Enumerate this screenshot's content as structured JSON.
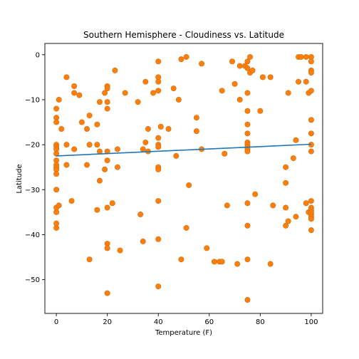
{
  "chart_data": {
    "type": "scatter",
    "title": "Southern Hemisphere - Cloudiness vs. Latitude",
    "xlabel": "Temperature (F)",
    "ylabel": "Latitude",
    "xlim": [
      -4.5,
      104.5
    ],
    "ylim": [
      -57.5,
      2.5
    ],
    "xticks": [
      0,
      20,
      40,
      60,
      80,
      100
    ],
    "yticks": [
      0,
      -10,
      -20,
      -30,
      -40,
      -50
    ],
    "grid": false,
    "colors": {
      "points": "#ff7f0e",
      "points_edge": "#d9720c",
      "regression": "#1f77b4"
    },
    "regression": {
      "x": [
        0,
        100
      ],
      "y": [
        -22.5,
        -19.9
      ]
    },
    "points": [
      [
        0,
        -12
      ],
      [
        0,
        -14
      ],
      [
        0,
        -15
      ],
      [
        0,
        -20
      ],
      [
        0,
        -20.5
      ],
      [
        0,
        -21
      ],
      [
        0,
        -22
      ],
      [
        0,
        -23.5
      ],
      [
        0,
        -24.5
      ],
      [
        0,
        -25
      ],
      [
        0,
        -25.5
      ],
      [
        0,
        -26.5
      ],
      [
        0,
        -30
      ],
      [
        0,
        -34
      ],
      [
        0,
        -35
      ],
      [
        0,
        -37.5
      ],
      [
        0,
        -38.5
      ],
      [
        1,
        -10
      ],
      [
        1,
        -33.5
      ],
      [
        2,
        -16.5
      ],
      [
        4,
        -5
      ],
      [
        4,
        -20
      ],
      [
        4,
        -24.5
      ],
      [
        6,
        -32.5
      ],
      [
        7,
        -7
      ],
      [
        7,
        -8.5
      ],
      [
        7,
        -21
      ],
      [
        9,
        -9
      ],
      [
        10,
        -15
      ],
      [
        12,
        -16.5
      ],
      [
        12,
        -24.5
      ],
      [
        13,
        -13.5
      ],
      [
        13,
        -20
      ],
      [
        13,
        -45.5
      ],
      [
        16,
        -15.5
      ],
      [
        16,
        -20
      ],
      [
        16,
        -34.5
      ],
      [
        17,
        -10.5
      ],
      [
        17,
        -21.5
      ],
      [
        17,
        -28
      ],
      [
        19,
        -8.5
      ],
      [
        19,
        -25.5
      ],
      [
        20,
        -7
      ],
      [
        20,
        -7.5
      ],
      [
        20,
        -10.5
      ],
      [
        20,
        -12
      ],
      [
        20,
        -21.5
      ],
      [
        20,
        -23.5
      ],
      [
        20,
        -34
      ],
      [
        20,
        -42
      ],
      [
        20,
        -43
      ],
      [
        20,
        -53
      ],
      [
        22,
        -33
      ],
      [
        23,
        -3.5
      ],
      [
        24,
        -21
      ],
      [
        24,
        -25
      ],
      [
        25,
        -43.5
      ],
      [
        27,
        -8.5
      ],
      [
        32,
        -10.5
      ],
      [
        33,
        -35.5
      ],
      [
        34,
        -21
      ],
      [
        34,
        -41.5
      ],
      [
        35,
        -6
      ],
      [
        35,
        -19.5
      ],
      [
        36,
        -16.5
      ],
      [
        36,
        -21.5
      ],
      [
        38,
        -8.5
      ],
      [
        40,
        -1.5
      ],
      [
        40,
        -5
      ],
      [
        40,
        -6
      ],
      [
        40,
        -8
      ],
      [
        40,
        -18.5
      ],
      [
        40,
        -20
      ],
      [
        40,
        -20.5
      ],
      [
        40,
        -25
      ],
      [
        40,
        -25.5
      ],
      [
        40,
        -32.5
      ],
      [
        40,
        -41
      ],
      [
        40,
        -51.5
      ],
      [
        41,
        -16
      ],
      [
        44,
        -16.5
      ],
      [
        46,
        -7.5
      ],
      [
        47,
        -22.5
      ],
      [
        48,
        -10
      ],
      [
        49,
        -1
      ],
      [
        49,
        -45.5
      ],
      [
        51,
        -0.5
      ],
      [
        51,
        -38.5
      ],
      [
        52,
        -29
      ],
      [
        55,
        -14
      ],
      [
        55,
        -17
      ],
      [
        57,
        -2
      ],
      [
        57,
        -21
      ],
      [
        59,
        -43
      ],
      [
        62,
        -46
      ],
      [
        64,
        -46
      ],
      [
        65,
        -8
      ],
      [
        65,
        -46
      ],
      [
        66,
        -22
      ],
      [
        67,
        -33.5
      ],
      [
        69,
        -1.5
      ],
      [
        70,
        -6.5
      ],
      [
        71,
        -46.5
      ],
      [
        72,
        -10
      ],
      [
        72,
        -2.5
      ],
      [
        74,
        -2.5
      ],
      [
        75,
        -1.5
      ],
      [
        75,
        -3
      ],
      [
        75,
        -8.5
      ],
      [
        75,
        -12.5
      ],
      [
        75,
        -15.5
      ],
      [
        75,
        -17.5
      ],
      [
        75,
        -19.5
      ],
      [
        75,
        -20
      ],
      [
        75,
        -20.5
      ],
      [
        75,
        -21
      ],
      [
        75,
        -21.5
      ],
      [
        75,
        -33
      ],
      [
        75,
        -38
      ],
      [
        75,
        -45.5
      ],
      [
        75,
        -54.5
      ],
      [
        76,
        -0.5
      ],
      [
        76,
        -4
      ],
      [
        77,
        -3.5
      ],
      [
        78,
        -31
      ],
      [
        80,
        -12.5
      ],
      [
        81,
        -5
      ],
      [
        84,
        -5
      ],
      [
        84,
        -46.5
      ],
      [
        85,
        -33.5
      ],
      [
        90,
        -25
      ],
      [
        90,
        -28.5
      ],
      [
        90,
        -34
      ],
      [
        90,
        -38
      ],
      [
        91,
        -37
      ],
      [
        91,
        -8.5
      ],
      [
        93,
        -23
      ],
      [
        94,
        -19
      ],
      [
        94,
        -36
      ],
      [
        95,
        -0.5
      ],
      [
        95,
        -6
      ],
      [
        96,
        -0.5
      ],
      [
        98,
        -0.5
      ],
      [
        98,
        -6
      ],
      [
        98,
        -33
      ],
      [
        99,
        -8.5
      ],
      [
        99,
        -35
      ],
      [
        100,
        -0.5
      ],
      [
        100,
        -1.5
      ],
      [
        100,
        -3.5
      ],
      [
        100,
        -4
      ],
      [
        100,
        -8
      ],
      [
        100,
        -14.5
      ],
      [
        100,
        -17.5
      ],
      [
        100,
        -20
      ],
      [
        100,
        -21.5
      ],
      [
        100,
        -32.5
      ],
      [
        100,
        -34
      ],
      [
        100,
        -34.5
      ],
      [
        100,
        -35
      ],
      [
        100,
        -35.5
      ],
      [
        100,
        -36
      ],
      [
        100,
        -36.5
      ],
      [
        100,
        -39
      ]
    ]
  }
}
